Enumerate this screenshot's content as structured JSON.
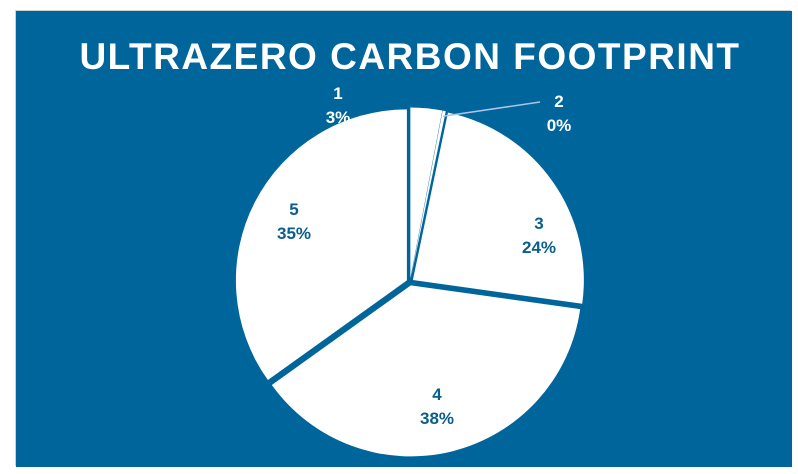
{
  "chart_data": {
    "type": "pie",
    "title": "ULTRAZERO CARBON FOOTPRINT",
    "categories": [
      "1",
      "2",
      "3",
      "4",
      "5"
    ],
    "values": [
      3,
      0.3,
      24,
      38,
      35
    ],
    "labels": [
      {
        "name": "1",
        "percent": "3%"
      },
      {
        "name": "2",
        "percent": "0%"
      },
      {
        "name": "3",
        "percent": "24%"
      },
      {
        "name": "4",
        "percent": "38%"
      },
      {
        "name": "5",
        "percent": "35%"
      }
    ],
    "legend": "none"
  },
  "colors": {
    "background": "#00659A",
    "slice_fill": "#FFFFFF",
    "label_dark": "#0A5E8C",
    "label_light": "#FFFFFF",
    "leader_line": "#AFC4E6"
  }
}
